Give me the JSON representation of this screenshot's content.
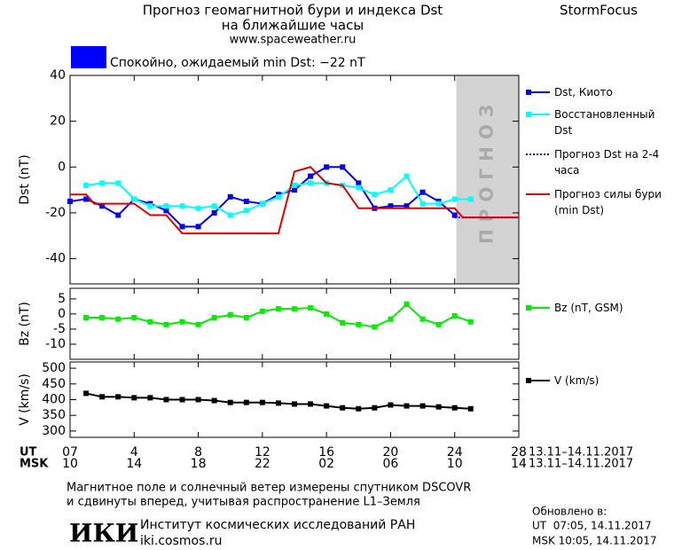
{
  "header": {
    "title": "Прогноз геомагнитной бури и индекса Dst",
    "subtitle": "на ближайшие часы",
    "url": "www.spaceweather.ru",
    "brand": "StormFocus",
    "status": "Спокойно, ожидаемый min Dst: −22 nT",
    "status_color": "#0000ff"
  },
  "chart_data": [
    {
      "type": "line",
      "ylabel": "Dst (nT)",
      "xlim": [
        0,
        28
      ],
      "ylim": [
        -51,
        40
      ],
      "yticks": [
        -40,
        -20,
        0,
        20,
        40
      ],
      "forecast_region": [
        24.1,
        28
      ],
      "forecast_label": "ПРОГНОЗ",
      "x": [
        0,
        1,
        2,
        3,
        4,
        5,
        6,
        7,
        8,
        9,
        10,
        11,
        12,
        13,
        14,
        15,
        16,
        17,
        18,
        19,
        20,
        21,
        22,
        23,
        24,
        25
      ],
      "series": [
        {
          "name": "Dst, Киото",
          "color": "#0000ff",
          "marker": "square",
          "values": [
            -15,
            -14,
            -17,
            -21,
            -14,
            -16,
            -19,
            -26,
            -26,
            -20,
            -13,
            -15,
            -16,
            -12,
            -10,
            -4,
            0,
            0,
            -7,
            -18,
            -17,
            -17,
            -11,
            -15,
            -21,
            null
          ]
        },
        {
          "name": "Восстановленный Dst",
          "color": "#00ffff",
          "marker": "square",
          "values": [
            null,
            -8,
            -7,
            -7,
            -14,
            -17,
            -17,
            -17,
            -18,
            -17,
            -21,
            -19,
            -16,
            -13,
            -8,
            -7,
            -7,
            -8,
            -9,
            -12,
            -10,
            -4,
            -16,
            -16,
            -14,
            -14
          ]
        },
        {
          "name": "Прогноз Dst на 2-4 часа",
          "color": "#0000c0",
          "dash": true,
          "x": [
            24,
            28
          ],
          "values": [
            -22,
            -22
          ]
        },
        {
          "name": "Прогноз силы бури (min Dst)",
          "color": "#dd0000",
          "x": [
            0,
            1,
            1.5,
            4,
            5,
            6,
            7,
            13,
            14,
            15,
            16,
            17,
            18,
            24,
            24.5,
            28
          ],
          "values": [
            -12,
            -12,
            -16,
            -16,
            -21,
            -21,
            -29,
            -29,
            -2,
            0,
            -7,
            -8,
            -18,
            -18,
            -22,
            -22
          ]
        }
      ]
    },
    {
      "type": "line",
      "ylabel": "Bz (nT)",
      "xlim": [
        0,
        28
      ],
      "ylim": [
        -15,
        8.5
      ],
      "yticks": [
        -10,
        -5,
        0,
        5
      ],
      "x": [
        0,
        1,
        2,
        3,
        4,
        5,
        6,
        7,
        8,
        9,
        10,
        11,
        12,
        13,
        14,
        15,
        16,
        17,
        18,
        19,
        20,
        21,
        22,
        23,
        24,
        25
      ],
      "series": [
        {
          "name": "Bz (nT, GSM)",
          "color": "#00ee00",
          "marker": "square",
          "values": [
            null,
            -1.2,
            -1.2,
            -1.7,
            -1.2,
            -2.6,
            -3.5,
            -2.6,
            -3.5,
            -1.2,
            -0.3,
            -1.2,
            0.9,
            1.7,
            1.7,
            2,
            0,
            -2.9,
            -3.5,
            -4.3,
            -1.7,
            3.2,
            -1.7,
            -3.5,
            -0.6,
            -2.6
          ]
        }
      ]
    },
    {
      "type": "line",
      "ylabel": "V (km/s)",
      "xlim": [
        0,
        28
      ],
      "ylim": [
        280,
        520
      ],
      "yticks": [
        300,
        350,
        400,
        450,
        500
      ],
      "x": [
        0,
        1,
        2,
        3,
        4,
        5,
        6,
        7,
        8,
        9,
        10,
        11,
        12,
        13,
        14,
        15,
        16,
        17,
        18,
        19,
        20,
        21,
        22,
        23,
        24,
        25
      ],
      "xlabel": "UT",
      "xdate": "13.11–14.11.2017",
      "xticks": [
        {
          "value": 0,
          "label": "07"
        },
        4,
        8,
        12,
        16,
        20,
        24,
        28
      ],
      "x2label": "MSK",
      "x2date": "13.11–14.11.2017",
      "x2ticks": [
        {
          "value": 0,
          "label": "10"
        },
        {
          "value": 4,
          "label": "14"
        },
        {
          "value": 8,
          "label": "18"
        },
        {
          "value": 12,
          "label": "22"
        },
        {
          "value": 16,
          "label": "02"
        },
        {
          "value": 20,
          "label": "06"
        },
        {
          "value": 24,
          "label": "10"
        },
        {
          "value": 28,
          "label": "14"
        }
      ],
      "series": [
        {
          "name": "V (km/s)",
          "color": "#000000",
          "marker": "square",
          "values": [
            null,
            420,
            409,
            409,
            406,
            406,
            400,
            400,
            400,
            397,
            391,
            391,
            391,
            389,
            386,
            386,
            380,
            374,
            371,
            374,
            383,
            380,
            380,
            377,
            374,
            371
          ]
        }
      ]
    }
  ],
  "footer": {
    "note_line1": "Магнитное поле и солнечный ветер измерены спутником DSCOVR",
    "note_line2": "и сдвинуты вперед, учитывая распространение L1–Земля",
    "logo": "ИКИ",
    "institute": "Институт космических исследований РАН",
    "site": "iki.cosmos.ru",
    "updated_label": "Обновлено в:",
    "updated_ut": "UT  07:05, 14.11.2017",
    "updated_msk": "MSK 10:05, 14.11.2017"
  }
}
